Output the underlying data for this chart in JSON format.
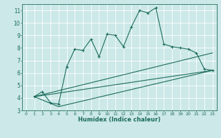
{
  "xlabel": "Humidex (Indice chaleur)",
  "xlim": [
    -0.5,
    23.5
  ],
  "ylim": [
    3,
    11.5
  ],
  "yticks": [
    3,
    4,
    5,
    6,
    7,
    8,
    9,
    10,
    11
  ],
  "xticks": [
    0,
    1,
    2,
    3,
    4,
    5,
    6,
    7,
    8,
    9,
    10,
    11,
    12,
    13,
    14,
    15,
    16,
    17,
    18,
    19,
    20,
    21,
    22,
    23
  ],
  "bg_color": "#cce8e8",
  "grid_color": "#ffffff",
  "line_color": "#1a6b5a",
  "series1_x": [
    1,
    2,
    3,
    4,
    5,
    6,
    7,
    8,
    9,
    10,
    11,
    12,
    13,
    14,
    15,
    16,
    17,
    18,
    19,
    20,
    21,
    22,
    23
  ],
  "series1_y": [
    4.1,
    4.5,
    3.6,
    3.5,
    6.5,
    7.9,
    7.8,
    8.7,
    7.3,
    9.1,
    9.0,
    8.1,
    9.7,
    11.0,
    10.8,
    11.2,
    8.3,
    8.1,
    8.0,
    7.9,
    7.6,
    6.3,
    6.2
  ],
  "series2_x": [
    1,
    23
  ],
  "series2_y": [
    4.1,
    6.2
  ],
  "series3_x": [
    1,
    23
  ],
  "series3_y": [
    4.1,
    7.6
  ],
  "series4_x": [
    1,
    4,
    23
  ],
  "series4_y": [
    4.1,
    3.3,
    6.2
  ]
}
